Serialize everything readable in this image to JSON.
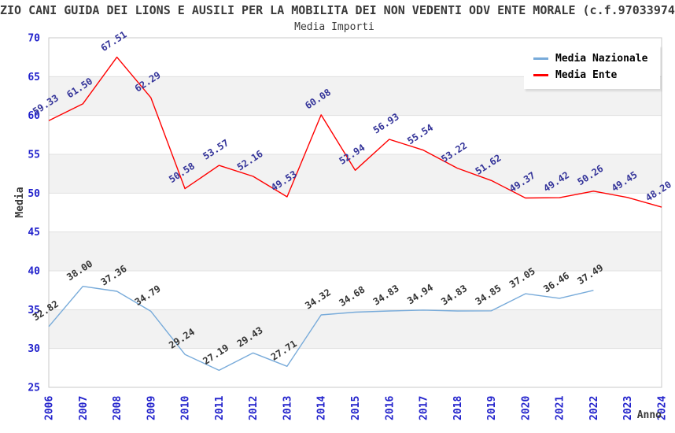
{
  "page": {
    "title": "ZIO CANI GUIDA DEI LIONS E AUSILI PER LA MOBILITA DEI NON VEDENTI ODV ENTE MORALE (c.f.97033974",
    "subtitle": "Media Importi"
  },
  "legend": {
    "position": "top-right",
    "items": [
      {
        "label": "Media Nazionale",
        "color": "#78abda"
      },
      {
        "label": "Media Ente",
        "color": "#ff0000"
      }
    ]
  },
  "chart_data": {
    "type": "line",
    "title": "Media Importi",
    "xlabel": "Anno",
    "ylabel": "Media",
    "x": [
      2006,
      2007,
      2008,
      2009,
      2010,
      2011,
      2012,
      2013,
      2014,
      2015,
      2016,
      2017,
      2018,
      2019,
      2020,
      2021,
      2022,
      2023,
      2024
    ],
    "series": [
      {
        "name": "Media Nazionale",
        "color": "#78abda",
        "label_color": "#333333",
        "values": [
          32.82,
          38.0,
          37.36,
          34.79,
          29.24,
          27.19,
          29.43,
          27.71,
          34.32,
          34.68,
          34.83,
          34.94,
          34.83,
          34.85,
          37.05,
          36.46,
          37.49,
          null,
          null
        ]
      },
      {
        "name": "Media Ente",
        "color": "#ff0000",
        "label_color": "#333399",
        "values": [
          59.33,
          61.5,
          67.51,
          62.29,
          50.58,
          53.57,
          52.16,
          49.53,
          60.08,
          52.94,
          56.93,
          55.54,
          53.22,
          51.62,
          49.37,
          49.42,
          50.26,
          49.45,
          48.2
        ]
      }
    ],
    "ylim": [
      25,
      70
    ],
    "y_ticks": [
      25,
      30,
      35,
      40,
      45,
      50,
      55,
      60,
      65,
      70
    ],
    "grid": "horizontal-bands",
    "legend_position": "top-right"
  },
  "colors": {
    "tick_label": "#2222cc",
    "band_gray": "#f2f2f2",
    "band_white": "#ffffff",
    "grid_line": "#e0e0e0",
    "plot_border": "#c9c9c9",
    "heading_text": "#3a3a3a"
  }
}
